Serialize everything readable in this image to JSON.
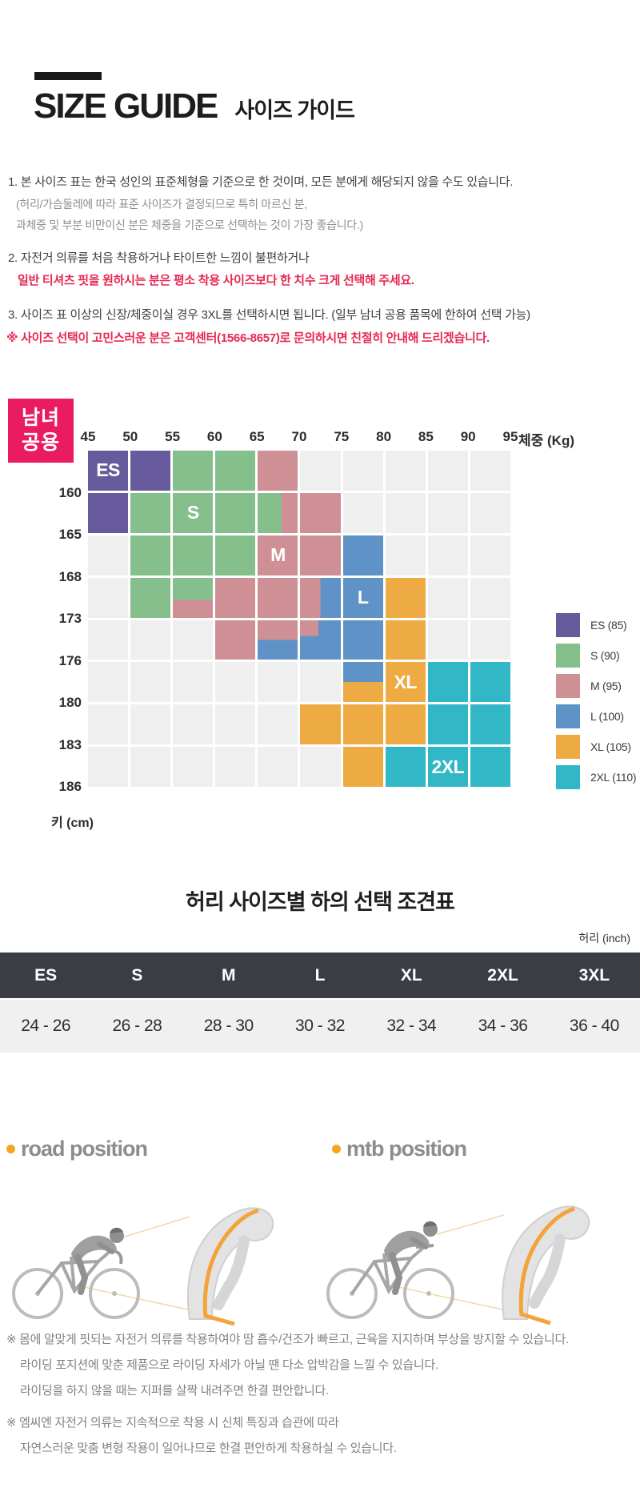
{
  "header": {
    "title_en": "SIZE GUIDE",
    "title_ko": "사이즈 가이드"
  },
  "notes": {
    "item1": "1. 본 사이즈 표는 한국 성인의 표준체형을 기준으로 한 것이며, 모든 분에게 해당되지 않을 수도 있습니다.",
    "item1_sub1": "(허리/가슴둘레에 따라 표준 사이즈가 결정되므로 특히 마르신 분,",
    "item1_sub2": "과체중 및 부분 비만이신 분은 체중을 기준으로 선택하는 것이 가장 좋습니다.)",
    "item2": "2. 자전거 의류를 처음 착용하거나 타이트한 느낌이 불편하거나",
    "item2_red": "일반 티셔츠 핏을 원하시는 분은 평소 착용 사이즈보다 한 치수 크게 선택해 주세요.",
    "item3": "3. 사이즈 표 이상의 신장/체중이실 경우 3XL를 선택하시면 됩니다. (일부 남녀 공용 품목에 한하여 선택 가능)",
    "item3_red": "※ 사이즈 선택이 고민스러운 분은 고객센터(1566-8657)로 문의하시면 친절히 안내해 드리겠습니다."
  },
  "size_chart": {
    "badge_line1": "남녀",
    "badge_line2": "공용",
    "badge_color": "#ea1c5f",
    "x_axis_title": "체중 (Kg)",
    "y_axis_title": "키 (cm)",
    "x_ticks": [
      "45",
      "50",
      "55",
      "60",
      "65",
      "70",
      "75",
      "80",
      "85",
      "90",
      "95"
    ],
    "y_ticks": [
      "160",
      "165",
      "168",
      "173",
      "176",
      "180",
      "183",
      "186"
    ],
    "palette": {
      "ES": "#675b9e",
      "S": "#85c08c",
      "M": "#cf9095",
      "L": "#5f92c6",
      "XL": "#eeab44",
      "2XL": "#32b7c6",
      "empty": "#efefef"
    },
    "rows": [
      [
        "ES*",
        "ES",
        "S",
        "S",
        "M",
        "",
        "",
        "",
        "",
        ""
      ],
      [
        "ES",
        "S",
        "S*",
        "S",
        "S|M:60",
        "M",
        "",
        "",
        "",
        ""
      ],
      [
        "",
        "S",
        "S",
        "S",
        "M*",
        "M",
        "L",
        "",
        "",
        ""
      ],
      [
        "",
        "S",
        "S-M:55",
        "M",
        "M",
        "M|L:50",
        "L*",
        "XL",
        "",
        ""
      ],
      [
        "",
        "",
        "",
        "M",
        "M-L:50",
        "M^L",
        "L",
        "XL",
        "",
        ""
      ],
      [
        "",
        "",
        "",
        "",
        "",
        "",
        "L-XL:50",
        "XL*",
        "2XL",
        "2XL"
      ],
      [
        "",
        "",
        "",
        "",
        "",
        "XL",
        "XL",
        "XL",
        "2XL",
        "2XL"
      ],
      [
        "",
        "",
        "",
        "",
        "",
        "",
        "XL",
        "2XL",
        "2XL*",
        "2XL"
      ]
    ],
    "legend": [
      {
        "size": "ES",
        "label": "ES (85)"
      },
      {
        "size": "S",
        "label": "S (90)"
      },
      {
        "size": "M",
        "label": "M (95)"
      },
      {
        "size": "L",
        "label": "L (100)"
      },
      {
        "size": "XL",
        "label": "XL (105)"
      },
      {
        "size": "2XL",
        "label": "2XL (110)"
      }
    ]
  },
  "waist_table": {
    "title": "허리 사이즈별 하의 선택 조견표",
    "unit_label": "허리 (inch)",
    "headers": [
      "ES",
      "S",
      "M",
      "L",
      "XL",
      "2XL",
      "3XL"
    ],
    "values": [
      "24 - 26",
      "26 - 28",
      "28 - 30",
      "30 - 32",
      "32 - 34",
      "34 - 36",
      "36 - 40"
    ],
    "header_bg": "#3a3d43",
    "row_bg": "#f0f0f0"
  },
  "positions": {
    "road_label": "road position",
    "mtb_label": "mtb position",
    "bullet_color": "#f5a623"
  },
  "footer": {
    "lines": [
      "※ 몸에 알맞게 핏되는 자전거 의류를 착용하여야 땀 흡수/건조가 빠르고, 근육을 지지하며 부상을 방지할 수 있습니다.",
      "라이딩 포지션에 맞춘 제품으로 라이딩 자세가 아닐 땐 다소 압박감을 느낄 수 있습니다.",
      "라이딩을 하지 않을 때는 지퍼를 살짝 내려주면 한결 편안합니다.",
      "※ 엠씨엔 자전거 의류는 지속적으로 착용 시 신체 특징과 습관에 따라",
      "자연스러운 맞춤 변형 작용이 일어나므로 한결 편안하게 착용하실 수 있습니다."
    ]
  }
}
